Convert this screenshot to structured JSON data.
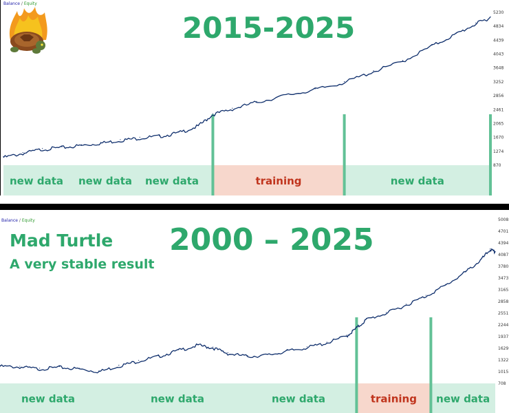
{
  "colors": {
    "accent_green": "#2ea86c",
    "curve": "#0d2d6b",
    "band_new": "#d3efe2",
    "band_train": "#f7d7cc",
    "train_text": "#c0341d",
    "divider": "#62c196"
  },
  "icon": "flaming-turtle-logo",
  "chart_data": [
    {
      "type": "line",
      "title": "2015-2025",
      "legend": {
        "balance": "Balance",
        "sep": "/",
        "equity": "Equity"
      },
      "y_ticks": [
        "870",
        "1274",
        "1670",
        "2065",
        "2461",
        "2856",
        "3252",
        "3648",
        "4043",
        "4439",
        "4834",
        "5230"
      ],
      "ylim": [
        870,
        5230
      ],
      "x_range": [
        0,
        100
      ],
      "series": [
        {
          "values": [
            {
              "x": 0,
              "y": 1080
            },
            {
              "x": 4,
              "y": 1200
            },
            {
              "x": 8,
              "y": 1320
            },
            {
              "x": 12,
              "y": 1370
            },
            {
              "x": 16,
              "y": 1430
            },
            {
              "x": 20,
              "y": 1500
            },
            {
              "x": 24,
              "y": 1580
            },
            {
              "x": 28,
              "y": 1650
            },
            {
              "x": 32,
              "y": 1700
            },
            {
              "x": 36,
              "y": 1800
            },
            {
              "x": 40,
              "y": 2000
            },
            {
              "x": 43,
              "y": 2340
            },
            {
              "x": 47,
              "y": 2500
            },
            {
              "x": 52,
              "y": 2700
            },
            {
              "x": 58,
              "y": 2900
            },
            {
              "x": 64,
              "y": 3070
            },
            {
              "x": 70,
              "y": 3280
            },
            {
              "x": 76,
              "y": 3600
            },
            {
              "x": 82,
              "y": 3900
            },
            {
              "x": 88,
              "y": 4350
            },
            {
              "x": 93,
              "y": 4700
            },
            {
              "x": 97,
              "y": 5000
            },
            {
              "x": 100,
              "y": 5180
            }
          ]
        }
      ],
      "dividers_x": [
        43,
        70,
        100
      ],
      "bands": [
        {
          "label": "new data",
          "kind": "new",
          "from": 0,
          "to": 43,
          "sub_labels": [
            "new data",
            "new data",
            "new data"
          ]
        },
        {
          "label": "training",
          "kind": "train",
          "from": 43,
          "to": 70
        },
        {
          "label": "new data",
          "kind": "new",
          "from": 70,
          "to": 100
        }
      ]
    },
    {
      "type": "line",
      "title": "2000 – 2025",
      "subtitle_1": "Mad Turtle",
      "subtitle_2": "A very stable result",
      "legend": {
        "balance": "Balance",
        "sep": "/",
        "equity": "Equity"
      },
      "y_ticks": [
        "708",
        "1015",
        "1322",
        "1629",
        "1937",
        "2244",
        "2551",
        "2858",
        "3165",
        "3473",
        "3780",
        "4087",
        "4394",
        "4701",
        "5008"
      ],
      "ylim": [
        708,
        5008
      ],
      "x_range": [
        0,
        100
      ],
      "series": [
        {
          "values": [
            {
              "x": 0,
              "y": 1040
            },
            {
              "x": 4,
              "y": 1020
            },
            {
              "x": 8,
              "y": 960
            },
            {
              "x": 12,
              "y": 1010
            },
            {
              "x": 16,
              "y": 960
            },
            {
              "x": 20,
              "y": 880
            },
            {
              "x": 24,
              "y": 1050
            },
            {
              "x": 28,
              "y": 1200
            },
            {
              "x": 32,
              "y": 1340
            },
            {
              "x": 36,
              "y": 1520
            },
            {
              "x": 40,
              "y": 1680
            },
            {
              "x": 43,
              "y": 1600
            },
            {
              "x": 46,
              "y": 1430
            },
            {
              "x": 50,
              "y": 1340
            },
            {
              "x": 54,
              "y": 1380
            },
            {
              "x": 58,
              "y": 1500
            },
            {
              "x": 62,
              "y": 1610
            },
            {
              "x": 66,
              "y": 1750
            },
            {
              "x": 70,
              "y": 1960
            },
            {
              "x": 72,
              "y": 2200
            },
            {
              "x": 74,
              "y": 2460
            },
            {
              "x": 78,
              "y": 2650
            },
            {
              "x": 82,
              "y": 2900
            },
            {
              "x": 86,
              "y": 3170
            },
            {
              "x": 90,
              "y": 3500
            },
            {
              "x": 94,
              "y": 3900
            },
            {
              "x": 97,
              "y": 4250
            },
            {
              "x": 99,
              "y": 4580
            },
            {
              "x": 100,
              "y": 4500
            }
          ]
        }
      ],
      "dividers_x": [
        72,
        87
      ],
      "bands": [
        {
          "label": "new data",
          "kind": "new",
          "from": 0,
          "to": 72,
          "sub_labels": [
            "new data",
            "new data",
            "new data"
          ]
        },
        {
          "label": "training",
          "kind": "train",
          "from": 72,
          "to": 87
        },
        {
          "label": "new data",
          "kind": "new",
          "from": 87,
          "to": 100
        }
      ]
    }
  ]
}
